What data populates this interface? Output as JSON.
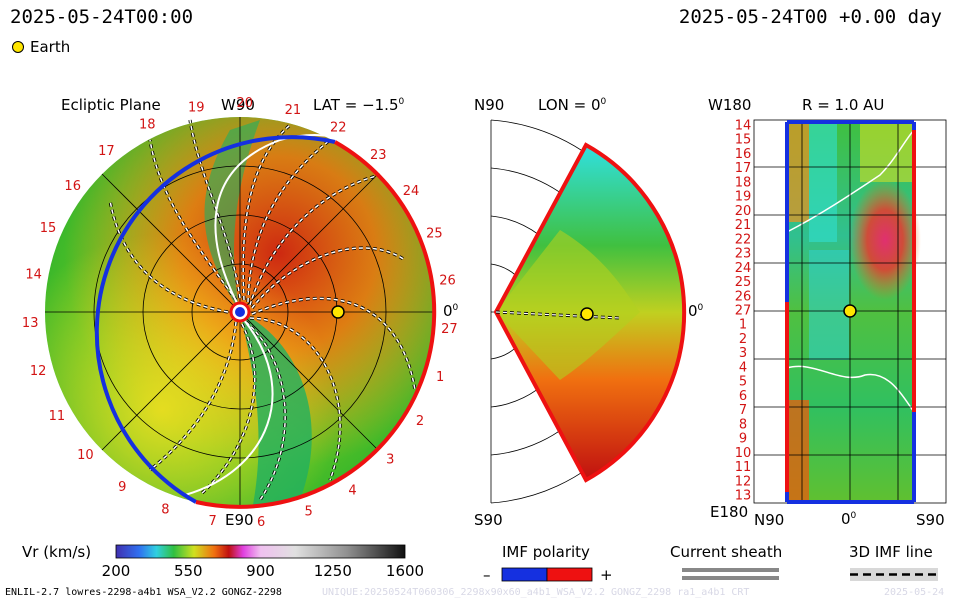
{
  "header": {
    "left_title": "2025-05-24T00:00",
    "right_title": "2025-05-24T00 +0.00 day",
    "legend_marker": "Earth"
  },
  "panels": {
    "ecliptic": {
      "title": "Ecliptic Plane",
      "top_label": "W90",
      "lat": "LAT = −1.5",
      "lat_deg": "0",
      "right": "0",
      "right_deg": "0",
      "bottom_label": "E90",
      "sectors": [
        "19",
        "20",
        "21",
        "22",
        "23",
        "24",
        "25",
        "26",
        "27",
        "1",
        "2",
        "3",
        "4",
        "5",
        "6",
        "7",
        "8",
        "9",
        "10",
        "11",
        "12",
        "13",
        "14",
        "15",
        "16",
        "17",
        "18"
      ]
    },
    "meridional": {
      "top_left": "N90",
      "lon": "LON = 0",
      "lon_deg": "0",
      "right": "0",
      "right_deg": "0",
      "bottom_left": "S90"
    },
    "radial": {
      "title": "R = 1.0 AU",
      "top_left": "W180",
      "bottom_left": "E180",
      "x_left": "N90",
      "x_mid": "0",
      "x_mid_deg": "0",
      "x_right": "S90",
      "rows": [
        "14",
        "15",
        "16",
        "17",
        "18",
        "19",
        "20",
        "21",
        "22",
        "23",
        "24",
        "25",
        "26",
        "27",
        "1",
        "2",
        "3",
        "4",
        "5",
        "6",
        "7",
        "8",
        "9",
        "10",
        "11",
        "12",
        "13"
      ]
    }
  },
  "colorbar": {
    "label": "Vr (km/s)",
    "ticks": [
      "200",
      "550",
      "900",
      "1250",
      "1600"
    ]
  },
  "legends": {
    "imf_polarity": "IMF polarity",
    "minus": "–",
    "plus": "+",
    "current_sheath": "Current sheath",
    "imf_line": "3D IMF line"
  },
  "footer": {
    "left": "ENLIL-2.7 lowres-2298-a4b1 WSA_V2.2 GONGZ-2298",
    "mid": "UNIQUE:20250524T060306_2298x90x60_a4b1_WSA_V2.2 GONGZ_2298 ra1_a4b1 CRT",
    "right": "2025-05-24"
  },
  "chart_data": {
    "type": "heatmap",
    "title": "",
    "quantity": "Vr (km/s)",
    "colorscale_range": [
      200,
      1600
    ],
    "colorscale_ticks": [
      200,
      550,
      900,
      1250,
      1600
    ],
    "time": "2025-05-24T00:00",
    "offset_days": 0.0,
    "ecliptic_latitude_deg": -1.5,
    "meridional_longitude_deg": 0,
    "radial_distance_au": 1.0,
    "earth_marker": true,
    "imf_polarity_colors": {
      "negative": "#0000ee",
      "positive": "#ee0000"
    }
  },
  "colors": {
    "sector": "#d21414",
    "neg": "#1530e0",
    "pos": "#ee1111"
  }
}
